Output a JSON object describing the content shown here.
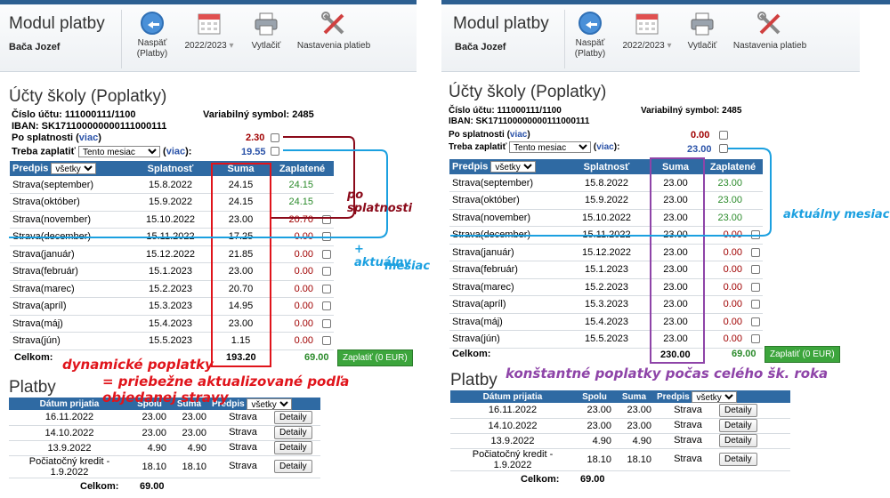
{
  "module": {
    "title": "Modul platby",
    "user": "Bača Jozef",
    "back_label": "Naspäť\n(Platby)",
    "year": "2022/2023",
    "print": "Vytlačiť",
    "settings": "Nastavenia platieb"
  },
  "section_title": "Účty školy (Poplatky)",
  "account": {
    "number_label": "Číslo účtu: 111000111/1100",
    "iban_label": "IBAN: SK171100000000111000111",
    "var_symbol": "Variabilný symbol: 2485",
    "po_splatnosti": "Po splatnosti",
    "viac": "viac",
    "treba": "Treba zaplatiť",
    "tento_mesiac": "Tento mesiac"
  },
  "table_headers": {
    "predpis": "Predpis",
    "vsetky": "všetky",
    "splatnost": "Splatnosť",
    "suma": "Suma",
    "zaplatene": "Zaplatené",
    "celkom": "Celkom:",
    "zaplatit": "Zaplatiť (0 EUR)"
  },
  "left": {
    "po_splatnosti_val": "2.30",
    "treba_val": "19.55",
    "rows": [
      {
        "name": "Strava(september)",
        "date": "15.8.2022",
        "sum": "24.15",
        "paid": "24.15",
        "pc": "green"
      },
      {
        "name": "Strava(október)",
        "date": "15.9.2022",
        "sum": "24.15",
        "paid": "24.15",
        "pc": "green"
      },
      {
        "name": "Strava(november)",
        "date": "15.10.2022",
        "sum": "23.00",
        "paid": "20.70",
        "pc": "red"
      },
      {
        "name": "Strava(december)",
        "date": "15.11.2022",
        "sum": "17.25",
        "paid": "0.00",
        "pc": "red"
      },
      {
        "name": "Strava(január)",
        "date": "15.12.2022",
        "sum": "21.85",
        "paid": "0.00",
        "pc": "red"
      },
      {
        "name": "Strava(február)",
        "date": "15.1.2023",
        "sum": "23.00",
        "paid": "0.00",
        "pc": "red"
      },
      {
        "name": "Strava(marec)",
        "date": "15.2.2023",
        "sum": "20.70",
        "paid": "0.00",
        "pc": "red"
      },
      {
        "name": "Strava(apríl)",
        "date": "15.3.2023",
        "sum": "14.95",
        "paid": "0.00",
        "pc": "red"
      },
      {
        "name": "Strava(máj)",
        "date": "15.4.2023",
        "sum": "23.00",
        "paid": "0.00",
        "pc": "red"
      },
      {
        "name": "Strava(jún)",
        "date": "15.5.2023",
        "sum": "1.15",
        "paid": "0.00",
        "pc": "red"
      }
    ],
    "total_sum": "193.20",
    "total_paid": "69.00"
  },
  "right": {
    "po_splatnosti_val": "0.00",
    "treba_val": "23.00",
    "rows": [
      {
        "name": "Strava(september)",
        "date": "15.8.2022",
        "sum": "23.00",
        "paid": "23.00",
        "pc": "green"
      },
      {
        "name": "Strava(október)",
        "date": "15.9.2022",
        "sum": "23.00",
        "paid": "23.00",
        "pc": "green"
      },
      {
        "name": "Strava(november)",
        "date": "15.10.2022",
        "sum": "23.00",
        "paid": "23.00",
        "pc": "green"
      },
      {
        "name": "Strava(december)",
        "date": "15.11.2022",
        "sum": "23.00",
        "paid": "0.00",
        "pc": "red"
      },
      {
        "name": "Strava(január)",
        "date": "15.12.2022",
        "sum": "23.00",
        "paid": "0.00",
        "pc": "red"
      },
      {
        "name": "Strava(február)",
        "date": "15.1.2023",
        "sum": "23.00",
        "paid": "0.00",
        "pc": "red"
      },
      {
        "name": "Strava(marec)",
        "date": "15.2.2023",
        "sum": "23.00",
        "paid": "0.00",
        "pc": "red"
      },
      {
        "name": "Strava(apríl)",
        "date": "15.3.2023",
        "sum": "23.00",
        "paid": "0.00",
        "pc": "red"
      },
      {
        "name": "Strava(máj)",
        "date": "15.4.2023",
        "sum": "23.00",
        "paid": "0.00",
        "pc": "red"
      },
      {
        "name": "Strava(jún)",
        "date": "15.5.2023",
        "sum": "23.00",
        "paid": "0.00",
        "pc": "red"
      }
    ],
    "total_sum": "230.00",
    "total_paid": "69.00"
  },
  "platby": {
    "title": "Platby",
    "headers": {
      "datum": "Dátum prijatia",
      "spolu": "Spolu",
      "suma": "Suma",
      "predpis": "Predpis",
      "vsetky": "všetky"
    },
    "rows": [
      {
        "date": "16.11.2022",
        "spolu": "23.00",
        "suma": "23.00",
        "predpis": "Strava",
        "btn": "Detaily"
      },
      {
        "date": "14.10.2022",
        "spolu": "23.00",
        "suma": "23.00",
        "predpis": "Strava",
        "btn": "Detaily"
      },
      {
        "date": "13.9.2022",
        "spolu": "4.90",
        "suma": "4.90",
        "predpis": "Strava",
        "btn": "Detaily"
      },
      {
        "date": "Počiatočný kredit - 1.9.2022",
        "spolu": "18.10",
        "suma": "18.10",
        "predpis": "Strava",
        "btn": "Detaily"
      }
    ],
    "celkom_label": "Celkom:",
    "celkom_val": "69.00"
  },
  "annotations": {
    "po_splatnosti": "po splatnosti",
    "plus_aktualny": "+ aktuálny",
    "mesiac": "mesiac",
    "dyn1": "dynamické poplatky",
    "dyn2": "= priebežne aktualizované podľa objedanej stravy",
    "aktualny_mesiac": "aktuálny mesiac",
    "konst": "konštantné poplatky počas celého šk. roka"
  },
  "colors": {
    "header_blue": "#2f6aa3",
    "ann_red": "#e0141b",
    "ann_dark_red": "#8b0a1a",
    "ann_blue": "#1ba0e0",
    "ann_purple": "#8e44a8"
  }
}
